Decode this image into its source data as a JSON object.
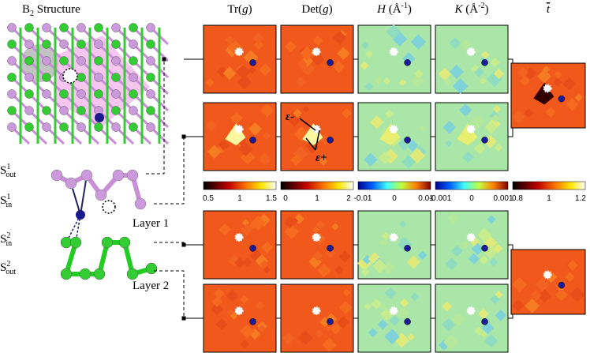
{
  "header": {
    "structure_title": {
      "base": "B",
      "sub": "2",
      "rest": " Structure"
    },
    "columns": [
      [
        {
          "text": "Tr("
        },
        {
          "text": "g",
          "italic": true
        },
        {
          "text": ")"
        }
      ],
      [
        {
          "text": "Det("
        },
        {
          "text": "g",
          "italic": true
        },
        {
          "text": ")"
        }
      ],
      [
        {
          "text": "H",
          "italic": true
        },
        {
          "text": " (Å"
        },
        {
          "text": "-1",
          "sup": true
        },
        {
          "text": ")"
        }
      ],
      [
        {
          "text": "K",
          "italic": true
        },
        {
          "text": " (Å"
        },
        {
          "text": "-2",
          "sup": true
        },
        {
          "text": ")"
        }
      ],
      [
        {
          "text": "t",
          "italic": true,
          "overbar": true
        }
      ]
    ]
  },
  "site_labels": [
    {
      "base": "S",
      "sup": "1",
      "sub": "out"
    },
    {
      "base": "S",
      "sup": "1",
      "sub": "in"
    },
    {
      "base": "S",
      "sup": "2",
      "sub": "in"
    },
    {
      "base": "S",
      "sup": "2",
      "sub": "out"
    }
  ],
  "layer_labels": [
    "Layer 1",
    "Layer 2"
  ],
  "strain_labels": [
    "ε-",
    "ε+"
  ],
  "colorbars": [
    {
      "ticks": [
        "0.5",
        "1",
        "1.5"
      ],
      "colormap": "hot"
    },
    {
      "ticks": [
        "0",
        "1",
        "2"
      ],
      "colormap": "hot"
    },
    {
      "ticks": [
        "-0.01",
        "0",
        "0.01"
      ],
      "colormap": "jet"
    },
    {
      "ticks": [
        "-0.001",
        "0",
        "0.001"
      ],
      "colormap": "jet"
    },
    {
      "ticks": [
        "0.8",
        "1",
        "1.2"
      ],
      "colormap": "hot"
    }
  ]
}
